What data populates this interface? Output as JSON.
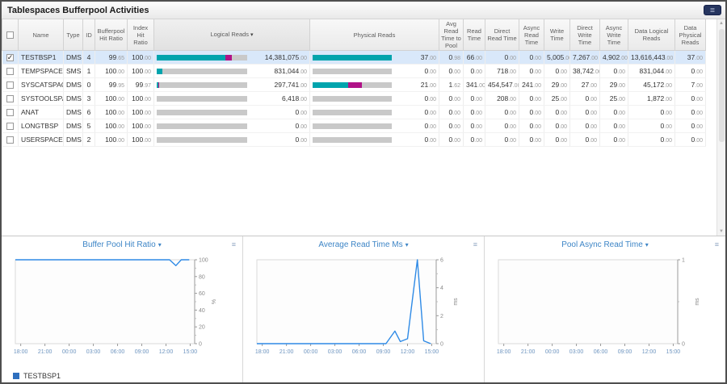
{
  "window": {
    "title": "Tablespaces Bufferpool Activities"
  },
  "table": {
    "columns": [
      {
        "key": "select",
        "label": ""
      },
      {
        "key": "name",
        "label": "Name"
      },
      {
        "key": "type",
        "label": "Type"
      },
      {
        "key": "id",
        "label": "ID"
      },
      {
        "key": "bufferpool_hit_ratio",
        "label": "Bufferpool Hit Ratio"
      },
      {
        "key": "index_hit_ratio",
        "label": "Index Hit Ratio"
      },
      {
        "key": "logical_reads",
        "label": "Logical Reads",
        "sorted": true
      },
      {
        "key": "physical_reads",
        "label": "Physical Reads"
      },
      {
        "key": "avg_read_time_to_pool",
        "label": "Avg Read Time to Pool"
      },
      {
        "key": "read_time",
        "label": "Read Time"
      },
      {
        "key": "direct_read_time",
        "label": "Direct Read Time"
      },
      {
        "key": "async_read_time",
        "label": "Async Read Time"
      },
      {
        "key": "write_time",
        "label": "Write Time"
      },
      {
        "key": "direct_write_time",
        "label": "Direct Write Time"
      },
      {
        "key": "async_write_time",
        "label": "Async Write Time"
      },
      {
        "key": "data_logical_reads",
        "label": "Data Logical Reads"
      },
      {
        "key": "data_physical_reads",
        "label": "Data Physical Reads"
      }
    ],
    "rows": [
      {
        "checked": true,
        "selected": true,
        "name": "TESTBSP1",
        "type": "DMS",
        "id": "4",
        "bufferpool_hit_ratio": "99.65",
        "index_hit_ratio": "100.00",
        "logical_reads": "14,381,075.00",
        "logical_bar": [
          0.76,
          0.07
        ],
        "physical_reads": "37.00",
        "physical_bar": [
          1.0,
          0
        ],
        "avg_read_time_to_pool": "0.98",
        "read_time": "66.00",
        "direct_read_time": "0.00",
        "async_read_time": "0.00",
        "write_time": "5,005.00",
        "direct_write_time": "7,267.00",
        "async_write_time": "4,902.00",
        "data_logical_reads": "13,616,443.00",
        "data_physical_reads": "37.00"
      },
      {
        "checked": false,
        "selected": false,
        "name": "TEMPSPACE1",
        "type": "SMS",
        "id": "1",
        "bufferpool_hit_ratio": "100.00",
        "index_hit_ratio": "100.00",
        "logical_reads": "831,044.00",
        "logical_bar": [
          0.06,
          0
        ],
        "physical_reads": "0.00",
        "physical_bar": [
          0,
          0
        ],
        "avg_read_time_to_pool": "0.00",
        "read_time": "0.00",
        "direct_read_time": "718.00",
        "async_read_time": "0.00",
        "write_time": "0.00",
        "direct_write_time": "38,742.00",
        "async_write_time": "0.00",
        "data_logical_reads": "831,044.00",
        "data_physical_reads": "0.00"
      },
      {
        "checked": false,
        "selected": false,
        "name": "SYSCATSPACE",
        "type": "DMS",
        "id": "0",
        "bufferpool_hit_ratio": "99.95",
        "index_hit_ratio": "99.97",
        "logical_reads": "297,741.00",
        "logical_bar": [
          0.02,
          0.01
        ],
        "physical_reads": "21.00",
        "physical_bar": [
          0.45,
          0.17
        ],
        "avg_read_time_to_pool": "1.62",
        "read_time": "341.00",
        "direct_read_time": "454,547.00",
        "async_read_time": "241.00",
        "write_time": "29.00",
        "direct_write_time": "27.00",
        "async_write_time": "29.00",
        "data_logical_reads": "45,172.00",
        "data_physical_reads": "7.00"
      },
      {
        "checked": false,
        "selected": false,
        "name": "SYSTOOLSPACE",
        "type": "DMS",
        "id": "3",
        "bufferpool_hit_ratio": "100.00",
        "index_hit_ratio": "100.00",
        "logical_reads": "6,418.00",
        "logical_bar": [
          0,
          0
        ],
        "physical_reads": "0.00",
        "physical_bar": [
          0,
          0
        ],
        "avg_read_time_to_pool": "0.00",
        "read_time": "0.00",
        "direct_read_time": "208.00",
        "async_read_time": "0.00",
        "write_time": "25.00",
        "direct_write_time": "0.00",
        "async_write_time": "25.00",
        "data_logical_reads": "1,872.00",
        "data_physical_reads": "0.00"
      },
      {
        "checked": false,
        "selected": false,
        "name": "ANAT",
        "type": "DMS",
        "id": "6",
        "bufferpool_hit_ratio": "100.00",
        "index_hit_ratio": "100.00",
        "logical_reads": "0.00",
        "logical_bar": [
          0,
          0
        ],
        "physical_reads": "0.00",
        "physical_bar": [
          0,
          0
        ],
        "avg_read_time_to_pool": "0.00",
        "read_time": "0.00",
        "direct_read_time": "0.00",
        "async_read_time": "0.00",
        "write_time": "0.00",
        "direct_write_time": "0.00",
        "async_write_time": "0.00",
        "data_logical_reads": "0.00",
        "data_physical_reads": "0.00"
      },
      {
        "checked": false,
        "selected": false,
        "name": "LONGTBSP",
        "type": "DMS",
        "id": "5",
        "bufferpool_hit_ratio": "100.00",
        "index_hit_ratio": "100.00",
        "logical_reads": "0.00",
        "logical_bar": [
          0,
          0
        ],
        "physical_reads": "0.00",
        "physical_bar": [
          0,
          0
        ],
        "avg_read_time_to_pool": "0.00",
        "read_time": "0.00",
        "direct_read_time": "0.00",
        "async_read_time": "0.00",
        "write_time": "0.00",
        "direct_write_time": "0.00",
        "async_write_time": "0.00",
        "data_logical_reads": "0.00",
        "data_physical_reads": "0.00"
      },
      {
        "checked": false,
        "selected": false,
        "name": "USERSPACE1",
        "type": "DMS",
        "id": "2",
        "bufferpool_hit_ratio": "100.00",
        "index_hit_ratio": "100.00",
        "logical_reads": "0.00",
        "logical_bar": [
          0,
          0
        ],
        "physical_reads": "0.00",
        "physical_bar": [
          0,
          0
        ],
        "avg_read_time_to_pool": "0.00",
        "read_time": "0.00",
        "direct_read_time": "0.00",
        "async_read_time": "0.00",
        "write_time": "0.00",
        "direct_write_time": "0.00",
        "async_write_time": "0.00",
        "data_logical_reads": "0.00",
        "data_physical_reads": "0.00"
      }
    ]
  },
  "bar_colors": {
    "teal": "#00a4ad",
    "magenta": "#b01287",
    "track": "#c9c9c9"
  },
  "chart_data": [
    {
      "type": "line",
      "title": "Buffer Pool Hit Ratio",
      "x_ticks": [
        "18:00",
        "21:00",
        "00:00",
        "03:00",
        "06:00",
        "09:00",
        "12:00",
        "15:00"
      ],
      "ylim": [
        0,
        100
      ],
      "y_ticks": [
        0,
        20,
        40,
        60,
        80,
        100
      ],
      "y_unit": "%",
      "series": [
        {
          "name": "TESTBSP1",
          "color": "#2e8ae6",
          "points": [
            [
              0,
              100
            ],
            [
              0.86,
              100
            ],
            [
              0.895,
              93
            ],
            [
              0.925,
              100
            ],
            [
              0.97,
              100
            ]
          ]
        }
      ]
    },
    {
      "type": "line",
      "title": "Average Read Time Ms",
      "x_ticks": [
        "18:00",
        "21:00",
        "00:00",
        "03:00",
        "06:00",
        "09:00",
        "12:00",
        "15:00"
      ],
      "ylim": [
        0,
        6
      ],
      "y_ticks": [
        0,
        2,
        4,
        6
      ],
      "y_unit": "ms",
      "series": [
        {
          "name": "TESTBSP1",
          "color": "#2e8ae6",
          "points": [
            [
              0,
              0
            ],
            [
              0.72,
              0
            ],
            [
              0.77,
              0.9
            ],
            [
              0.8,
              0.15
            ],
            [
              0.84,
              0.35
            ],
            [
              0.895,
              6
            ],
            [
              0.93,
              0.2
            ],
            [
              0.97,
              0
            ]
          ]
        }
      ]
    },
    {
      "type": "line",
      "title": "Pool Async Read Time",
      "x_ticks": [
        "18:00",
        "21:00",
        "00:00",
        "03:00",
        "06:00",
        "09:00",
        "12:00",
        "15:00"
      ],
      "ylim": [
        0,
        1
      ],
      "y_ticks": [
        0,
        1
      ],
      "y_unit": "ms",
      "series": []
    }
  ],
  "legend": {
    "label": "TESTBSP1",
    "color": "#2e6fbe"
  }
}
